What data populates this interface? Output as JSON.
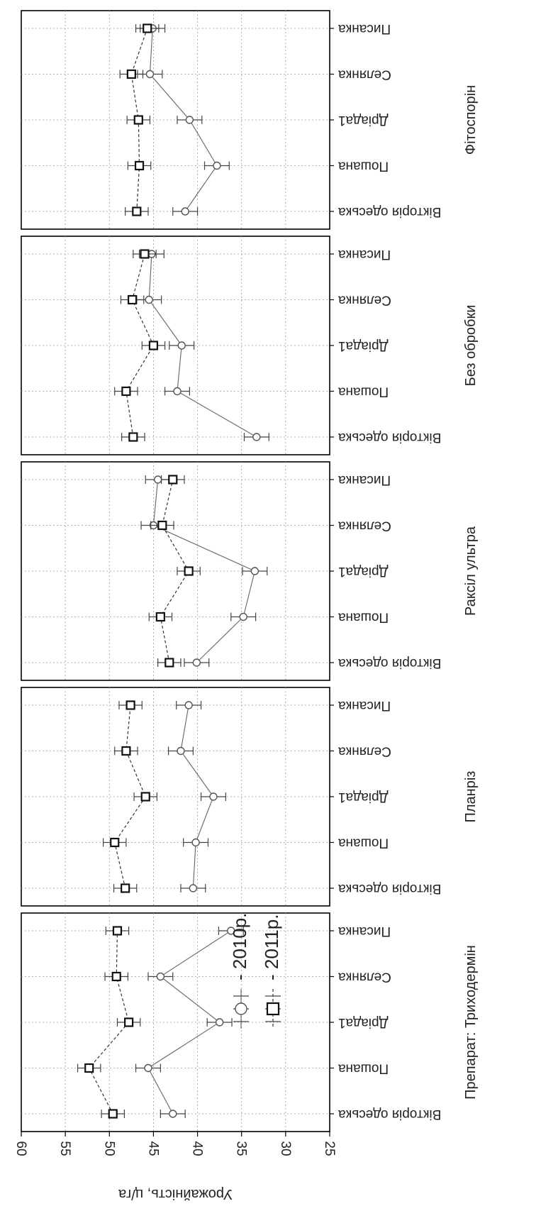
{
  "chart_data": {
    "type": "line",
    "orientation": "rotated-90-clockwise",
    "ylabel": "Урожайність, ц/га",
    "y_ticks": [
      60,
      55,
      50,
      45,
      40,
      35,
      30,
      25
    ],
    "ylim": [
      25,
      60
    ],
    "grid": true,
    "categories": [
      "Вікторія одеська",
      "Пошана",
      "Дріада1",
      "Селянка",
      "Писанка"
    ],
    "panel_prefix": "Препарат:",
    "panels": [
      {
        "name": "Триходермін",
        "series": [
          {
            "name": "2010р.",
            "values": [
              42.8,
              45.6,
              37.5,
              44.2,
              36.2
            ],
            "errors": [
              1.4,
              1.4,
              1.4,
              1.4,
              1.4
            ]
          },
          {
            "name": "2011р.",
            "values": [
              49.6,
              52.3,
              47.8,
              49.2,
              49.1
            ],
            "errors": [
              1.3,
              1.3,
              1.3,
              1.3,
              1.3
            ]
          }
        ]
      },
      {
        "name": "Планріз",
        "series": [
          {
            "name": "2010р.",
            "values": [
              40.5,
              40.2,
              38.2,
              41.9,
              41.0
            ],
            "errors": [
              1.4,
              1.4,
              1.4,
              1.4,
              1.4
            ]
          },
          {
            "name": "2011р.",
            "values": [
              48.2,
              49.4,
              45.9,
              48.1,
              47.6
            ],
            "errors": [
              1.3,
              1.3,
              1.3,
              1.3,
              1.3
            ]
          }
        ]
      },
      {
        "name": "Раксіл ультра",
        "series": [
          {
            "name": "2010р.",
            "values": [
              40.1,
              34.8,
              33.5,
              45.0,
              44.5
            ],
            "errors": [
              1.4,
              1.4,
              1.4,
              1.4,
              1.4
            ]
          },
          {
            "name": "2011р.",
            "values": [
              43.2,
              44.2,
              41.0,
              44.0,
              42.8
            ],
            "errors": [
              1.3,
              1.3,
              1.3,
              1.3,
              1.3
            ]
          }
        ]
      },
      {
        "name": "Без обробки",
        "series": [
          {
            "name": "2010р.",
            "values": [
              33.3,
              42.3,
              41.8,
              45.5,
              45.2
            ],
            "errors": [
              1.4,
              1.4,
              1.4,
              1.4,
              1.4
            ]
          },
          {
            "name": "2011р.",
            "values": [
              47.3,
              48.1,
              45.0,
              47.4,
              46.0
            ],
            "errors": [
              1.3,
              1.3,
              1.3,
              1.3,
              1.3
            ]
          }
        ]
      },
      {
        "name": "Фітоспорін",
        "series": [
          {
            "name": "2010р.",
            "values": [
              41.4,
              37.8,
              40.9,
              45.4,
              45.1
            ],
            "errors": [
              1.4,
              1.4,
              1.4,
              1.4,
              1.4
            ]
          },
          {
            "name": "2011р.",
            "values": [
              46.9,
              46.6,
              46.7,
              47.5,
              45.7
            ],
            "errors": [
              1.3,
              1.3,
              1.3,
              1.3,
              1.3
            ]
          }
        ]
      }
    ],
    "legend": {
      "placement": "inside first panel",
      "entries": [
        {
          "name": "2010р.",
          "label": "- 2010р.",
          "marker": "circle",
          "line": "solid"
        },
        {
          "name": "2011р.",
          "label": "- 2011р.",
          "marker": "square",
          "line": "dashed"
        }
      ]
    },
    "colors": {
      "line_2010": "#6e6e6e",
      "line_2011": "#333333",
      "frame": "#000000",
      "grid": "#9a9a9a"
    }
  }
}
